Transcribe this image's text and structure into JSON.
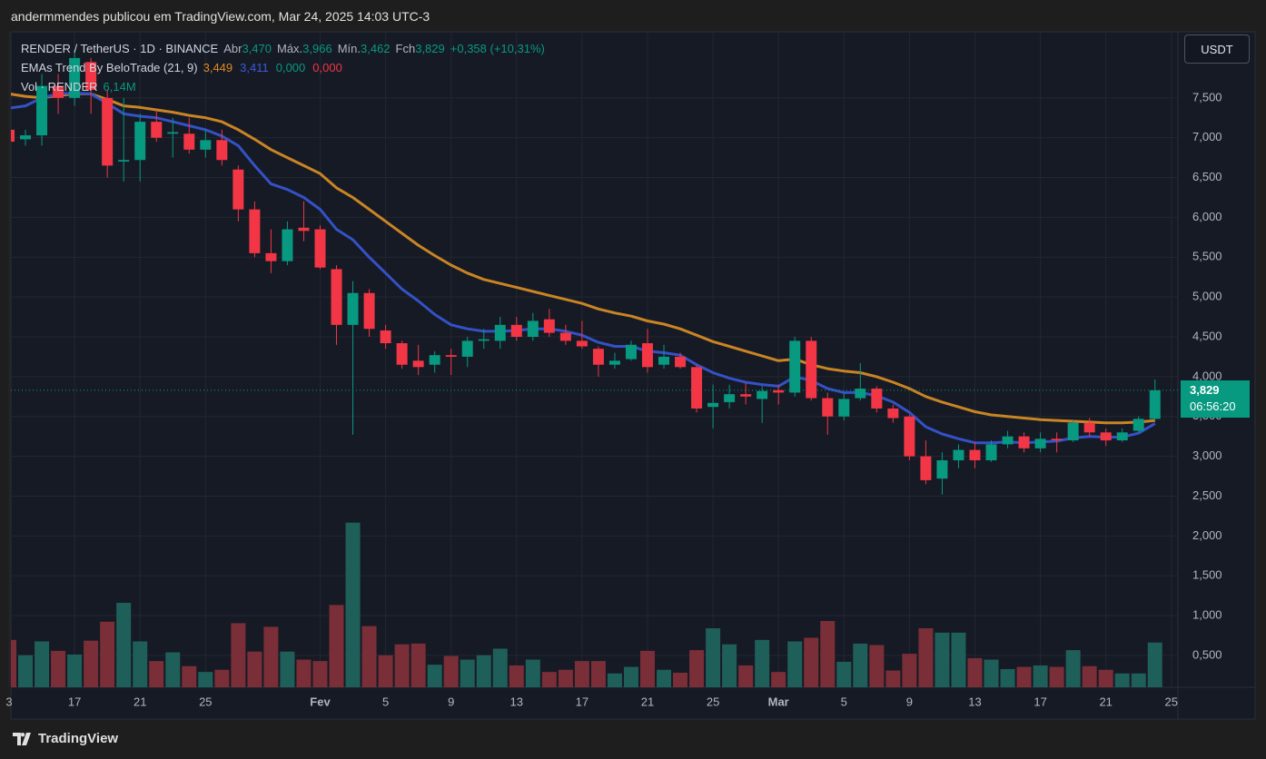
{
  "header": "andermmendes publicou em TradingView.com, Mar 24, 2025 14:03 UTC-3",
  "currency_button": "USDT",
  "footer_brand": "TradingView",
  "chart_data": {
    "type": "candlestick",
    "symbol": "RENDER / TetherUS · 1D · BINANCE",
    "ohlc_legend": [
      {
        "label": "Abr",
        "value": "3,470"
      },
      {
        "label": "Máx.",
        "value": "3,966"
      },
      {
        "label": "Mín.",
        "value": "3,462"
      },
      {
        "label": "Fch",
        "value": "3,829"
      }
    ],
    "change": "+0,358 (+10,31%)",
    "indicator": {
      "name": "EMAs Trend By BeloTrade (21, 9)",
      "values": [
        "3,449",
        "3,411",
        "0,000",
        "0,000"
      ],
      "colors": [
        "#e08a1e",
        "#3b5bdb",
        "#089981",
        "#f23645"
      ]
    },
    "volume_legend": {
      "name": "Vol · RENDER",
      "value": "6,14M"
    },
    "last_price_label": "3,829",
    "countdown": "06:56:20",
    "open": [
      7.1,
      6.98,
      7.03,
      7.65,
      7.5,
      7.95,
      7.5,
      6.7,
      6.72,
      7.2,
      7.05,
      7.05,
      6.85,
      6.97,
      6.6,
      6.1,
      5.55,
      5.45,
      5.87,
      5.85,
      5.35,
      4.65,
      5.05,
      4.58,
      4.42,
      4.2,
      4.15,
      4.27,
      4.25,
      4.45,
      4.45,
      4.65,
      4.5,
      4.72,
      4.55,
      4.45,
      4.35,
      4.15,
      4.22,
      4.42,
      4.15,
      4.25,
      4.12,
      3.62,
      3.68,
      3.78,
      3.72,
      3.83,
      3.8,
      4.45,
      3.73,
      3.5,
      3.73,
      3.85,
      3.6,
      3.5,
      3.0,
      2.72,
      2.95,
      3.08,
      2.95,
      3.15,
      3.25,
      3.1,
      3.22,
      3.2,
      3.42,
      3.3,
      3.2,
      3.32,
      3.47
    ],
    "high": [
      7.2,
      7.1,
      7.8,
      7.8,
      8.1,
      8.0,
      7.6,
      7.5,
      7.3,
      7.35,
      7.25,
      7.25,
      7.1,
      7.1,
      6.65,
      6.2,
      5.85,
      5.95,
      6.2,
      5.9,
      5.4,
      5.2,
      5.1,
      4.65,
      4.45,
      4.4,
      4.32,
      4.35,
      4.5,
      4.6,
      4.75,
      4.75,
      4.8,
      4.85,
      4.65,
      4.7,
      4.38,
      4.3,
      4.45,
      4.6,
      4.4,
      4.3,
      4.15,
      3.9,
      3.9,
      3.92,
      3.88,
      3.9,
      4.5,
      4.5,
      3.8,
      3.8,
      4.17,
      3.88,
      3.65,
      3.52,
      3.2,
      3.05,
      3.15,
      3.18,
      3.2,
      3.32,
      3.3,
      3.3,
      3.3,
      3.45,
      3.48,
      3.35,
      3.35,
      3.5,
      3.966
    ],
    "low": [
      6.9,
      6.9,
      6.9,
      7.3,
      7.4,
      7.3,
      6.5,
      6.45,
      6.45,
      6.95,
      6.75,
      6.8,
      6.75,
      6.65,
      5.95,
      5.5,
      5.3,
      5.4,
      5.7,
      5.35,
      4.4,
      3.27,
      4.5,
      4.35,
      4.1,
      4.02,
      4.05,
      4.02,
      4.12,
      4.35,
      4.35,
      4.45,
      4.45,
      4.5,
      4.4,
      4.35,
      4.0,
      4.1,
      4.2,
      4.05,
      4.1,
      4.1,
      3.55,
      3.35,
      3.6,
      3.65,
      3.42,
      3.65,
      3.75,
      3.7,
      3.27,
      3.45,
      3.7,
      3.55,
      3.42,
      2.95,
      2.65,
      2.52,
      2.85,
      2.85,
      2.93,
      3.1,
      3.05,
      3.05,
      3.05,
      3.18,
      3.25,
      3.13,
      3.18,
      3.3,
      3.462
    ],
    "close": [
      6.95,
      7.03,
      7.65,
      7.5,
      8.0,
      7.6,
      6.65,
      6.72,
      7.2,
      7.0,
      7.07,
      6.85,
      6.97,
      6.72,
      6.1,
      5.55,
      5.45,
      5.85,
      5.83,
      5.37,
      4.65,
      5.05,
      4.6,
      4.42,
      4.15,
      4.12,
      4.27,
      4.25,
      4.45,
      4.47,
      4.65,
      4.5,
      4.7,
      4.55,
      4.45,
      4.38,
      4.15,
      4.2,
      4.4,
      4.12,
      4.25,
      4.12,
      3.6,
      3.67,
      3.78,
      3.75,
      3.82,
      3.8,
      4.45,
      3.73,
      3.5,
      3.72,
      3.85,
      3.6,
      3.48,
      3.0,
      2.7,
      2.95,
      3.08,
      2.95,
      3.15,
      3.25,
      3.1,
      3.22,
      3.2,
      3.42,
      3.3,
      3.2,
      3.3,
      3.47,
      3.829
    ],
    "volume": [
      6.5,
      4.4,
      6.3,
      5.0,
      4.5,
      6.4,
      9.0,
      11.6,
      6.3,
      3.6,
      4.8,
      2.9,
      2.1,
      2.4,
      8.8,
      4.9,
      8.3,
      4.9,
      3.8,
      3.6,
      11.3,
      22.6,
      8.4,
      4.4,
      5.9,
      6.0,
      3.1,
      4.3,
      3.8,
      4.4,
      5.3,
      3.0,
      3.8,
      2.1,
      2.4,
      3.6,
      3.6,
      1.9,
      2.8,
      5.0,
      2.4,
      2.0,
      5.1,
      8.1,
      5.9,
      3.0,
      6.5,
      2.1,
      6.3,
      6.8,
      9.1,
      3.5,
      6.0,
      5.8,
      2.3,
      4.6,
      8.1,
      7.5,
      7.5,
      4.0,
      3.8,
      2.5,
      2.8,
      3.0,
      2.8,
      5.1,
      2.9,
      2.4,
      1.9,
      1.9,
      6.14
    ],
    "lines": [
      {
        "color": "#c98424",
        "values": [
          7.55,
          7.52,
          7.5,
          7.53,
          7.55,
          7.55,
          7.48,
          7.4,
          7.38,
          7.35,
          7.32,
          7.28,
          7.25,
          7.2,
          7.1,
          6.98,
          6.85,
          6.75,
          6.65,
          6.55,
          6.37,
          6.25,
          6.1,
          5.95,
          5.8,
          5.65,
          5.52,
          5.4,
          5.3,
          5.22,
          5.17,
          5.12,
          5.07,
          5.02,
          4.97,
          4.92,
          4.85,
          4.8,
          4.76,
          4.7,
          4.66,
          4.6,
          4.52,
          4.44,
          4.38,
          4.32,
          4.26,
          4.2,
          4.22,
          4.15,
          4.1,
          4.07,
          4.05,
          4.0,
          3.93,
          3.85,
          3.75,
          3.68,
          3.62,
          3.56,
          3.52,
          3.5,
          3.48,
          3.46,
          3.45,
          3.44,
          3.43,
          3.42,
          3.42,
          3.43,
          3.449
        ]
      },
      {
        "color": "#3451c6",
        "values": [
          7.37,
          7.4,
          7.5,
          7.55,
          7.56,
          7.55,
          7.43,
          7.3,
          7.27,
          7.25,
          7.2,
          7.15,
          7.1,
          7.02,
          6.9,
          6.65,
          6.42,
          6.35,
          6.25,
          6.1,
          5.85,
          5.72,
          5.5,
          5.3,
          5.1,
          4.95,
          4.78,
          4.65,
          4.6,
          4.57,
          4.57,
          4.58,
          4.6,
          4.6,
          4.57,
          4.52,
          4.43,
          4.38,
          4.38,
          4.32,
          4.3,
          4.27,
          4.15,
          4.05,
          3.98,
          3.93,
          3.9,
          3.88,
          4.0,
          3.95,
          3.85,
          3.8,
          3.8,
          3.76,
          3.68,
          3.55,
          3.37,
          3.28,
          3.22,
          3.17,
          3.17,
          3.18,
          3.17,
          3.18,
          3.19,
          3.23,
          3.25,
          3.24,
          3.24,
          3.29,
          3.411
        ]
      }
    ],
    "up_color": "#089981",
    "down_color": "#f23645",
    "volume_up_color": "#1f5f59",
    "volume_down_color": "#7a2e37",
    "ylim": [
      0.1,
      8.33
    ],
    "yticks": [
      {
        "value": 0.5,
        "label": "0,500"
      },
      {
        "value": 1,
        "label": "1,000"
      },
      {
        "value": 1.5,
        "label": "1,500"
      },
      {
        "value": 2,
        "label": "2,000"
      },
      {
        "value": 2.5,
        "label": "2,500"
      },
      {
        "value": 3,
        "label": "3,000"
      },
      {
        "value": 3.5,
        "label": "3,500"
      },
      {
        "value": 4,
        "label": "4,000"
      },
      {
        "value": 4.5,
        "label": "4,500"
      },
      {
        "value": 5,
        "label": "5,000"
      },
      {
        "value": 5.5,
        "label": "5,500"
      },
      {
        "value": 6,
        "label": "6,000"
      },
      {
        "value": 6.5,
        "label": "6,500"
      },
      {
        "value": 7,
        "label": "7,000"
      },
      {
        "value": 7.5,
        "label": "7,500"
      }
    ],
    "volume_ylim": [
      0,
      90
    ],
    "xlim": [
      0.11,
      71.4
    ],
    "xticks": [
      {
        "value": 0,
        "label": "3"
      },
      {
        "value": 4,
        "label": "17"
      },
      {
        "value": 8,
        "label": "21"
      },
      {
        "value": 12,
        "label": "25"
      },
      {
        "value": 19,
        "label": "Fev"
      },
      {
        "value": 23,
        "label": "5"
      },
      {
        "value": 27,
        "label": "9"
      },
      {
        "value": 31,
        "label": "13"
      },
      {
        "value": 35,
        "label": "17"
      },
      {
        "value": 39,
        "label": "21"
      },
      {
        "value": 43,
        "label": "25"
      },
      {
        "value": 47,
        "label": "Mar"
      },
      {
        "value": 51,
        "label": "5"
      },
      {
        "value": 55,
        "label": "9"
      },
      {
        "value": 59,
        "label": "13"
      },
      {
        "value": 63,
        "label": "17"
      },
      {
        "value": 67,
        "label": "21"
      },
      {
        "value": 71,
        "label": "25"
      }
    ],
    "grid": true
  }
}
